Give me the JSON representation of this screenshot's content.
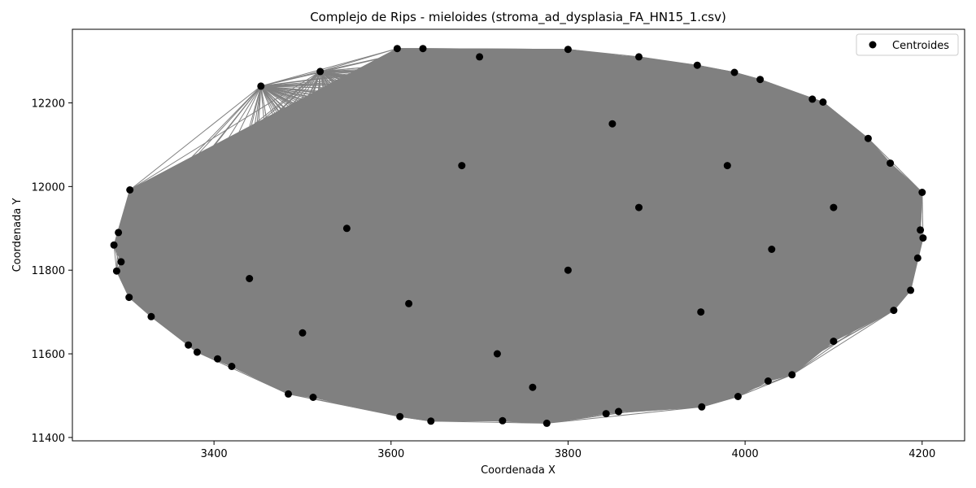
{
  "chart_data": {
    "type": "scatter",
    "title": "Complejo de Rips - mieloides (stroma_ad_dysplasia_FA_HN15_1.csv)",
    "xlabel": "Coordenada X",
    "ylabel": "Coordenada Y",
    "xlim": [
      3240,
      4248
    ],
    "ylim": [
      11392,
      12376
    ],
    "xticks": [
      3400,
      3600,
      3800,
      4000,
      4200
    ],
    "yticks": [
      11400,
      11600,
      11800,
      12000,
      12200
    ],
    "grid": false,
    "legend": {
      "placement": "top-right",
      "entries": [
        "Centroides"
      ]
    },
    "colors": {
      "points": "#000000",
      "edges": "#808080"
    },
    "series": [
      {
        "name": "Centroides",
        "points": [
          [
            3607,
            12330
          ],
          [
            3636,
            12330
          ],
          [
            3800,
            12328
          ],
          [
            3946,
            12290
          ],
          [
            3988,
            12273
          ],
          [
            4017,
            12256
          ],
          [
            4076,
            12209
          ],
          [
            4088,
            12202
          ],
          [
            4139,
            12115
          ],
          [
            4164,
            12056
          ],
          [
            4200,
            11986
          ],
          [
            4198,
            11896
          ],
          [
            4201,
            11877
          ],
          [
            4195,
            11829
          ],
          [
            4187,
            11752
          ],
          [
            4168,
            11704
          ],
          [
            4100,
            11630
          ],
          [
            4053,
            11550
          ],
          [
            4026,
            11535
          ],
          [
            3992,
            11498
          ],
          [
            3951,
            11473
          ],
          [
            3857,
            11462
          ],
          [
            3843,
            11457
          ],
          [
            3776,
            11434
          ],
          [
            3726,
            11440
          ],
          [
            3645,
            11439
          ],
          [
            3610,
            11450
          ],
          [
            3512,
            11496
          ],
          [
            3484,
            11504
          ],
          [
            3420,
            11570
          ],
          [
            3404,
            11588
          ],
          [
            3381,
            11604
          ],
          [
            3371,
            11621
          ],
          [
            3329,
            11689
          ],
          [
            3304,
            11735
          ],
          [
            3290,
            11798
          ],
          [
            3295,
            11820
          ],
          [
            3287,
            11860
          ],
          [
            3292,
            11890
          ],
          [
            3305,
            11992
          ],
          [
            3453,
            12240
          ],
          [
            3520,
            12275
          ],
          [
            3700,
            12310
          ],
          [
            3880,
            12310
          ],
          [
            3550,
            11900
          ],
          [
            3620,
            11720
          ],
          [
            3720,
            11600
          ],
          [
            3800,
            11800
          ],
          [
            3880,
            11950
          ],
          [
            3950,
            11700
          ],
          [
            4030,
            11850
          ],
          [
            4100,
            11950
          ],
          [
            3500,
            11650
          ],
          [
            3680,
            12050
          ],
          [
            3850,
            12150
          ],
          [
            3440,
            11780
          ],
          [
            3980,
            12050
          ],
          [
            3760,
            11520
          ]
        ]
      }
    ]
  }
}
